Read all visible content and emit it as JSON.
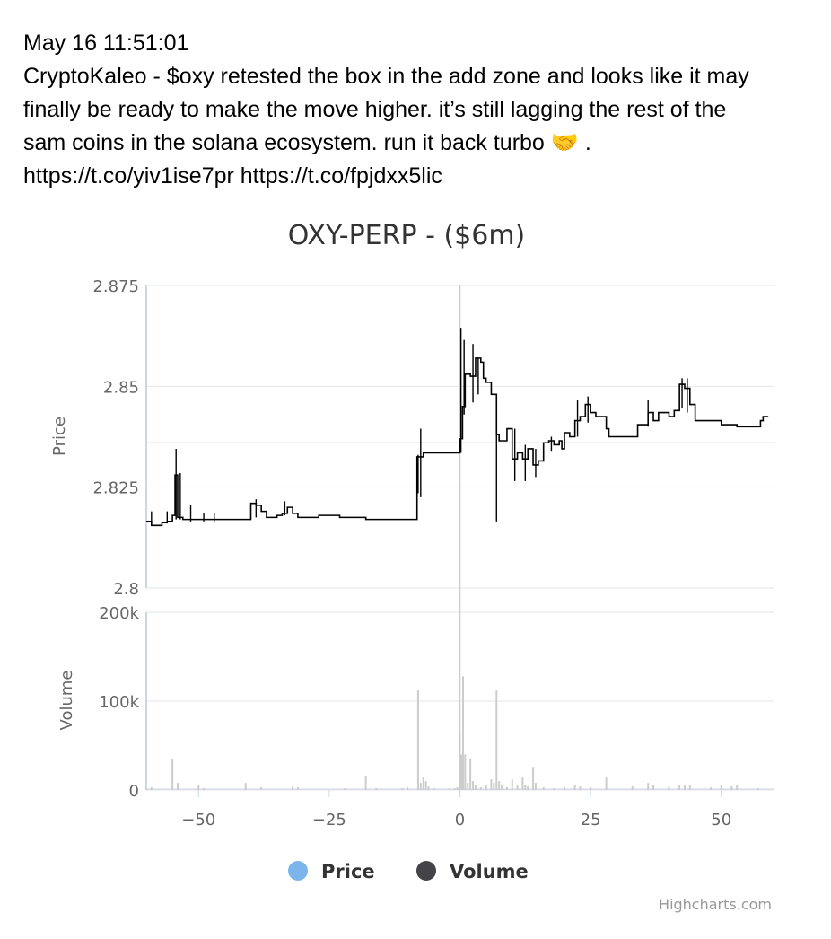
{
  "tweet": {
    "timestamp": "May 16 11:51:01",
    "line1": "CryptoKaleo - $oxy retested the box in the add zone and looks like it may",
    "line2": "finally be ready to make the move higher. it’s still lagging the rest of the",
    "line3": "sam coins in the solana ecosystem. run it back turbo 🤝 .",
    "line4": "https://t.co/yiv1ise7pr https://t.co/fpjdxx5lic"
  },
  "chart_data": {
    "type": "line",
    "title": "OXY-PERP - ($6m)",
    "credit": "Highcharts.com",
    "xlim": [
      -60,
      60
    ],
    "x_ticks": [
      -50,
      -25,
      0,
      25,
      50
    ],
    "x_tick_labels": [
      "−50",
      "−25",
      "0",
      "25",
      "50"
    ],
    "price_axis": {
      "label": "Price",
      "ylim": [
        2.8,
        2.875
      ],
      "ticks": [
        2.8,
        2.825,
        2.85,
        2.875
      ],
      "tick_labels": [
        "2.8",
        "2.825",
        "2.85",
        "2.875"
      ],
      "reference_line": 2.836
    },
    "volume_axis": {
      "label": "Volume",
      "ylim": [
        0,
        200000
      ],
      "ticks": [
        0,
        100000,
        200000
      ],
      "tick_labels": [
        "0",
        "100k",
        "200k"
      ]
    },
    "legend": [
      {
        "name": "Price",
        "color": "#7cb5ec"
      },
      {
        "name": "Volume",
        "color": "#434348"
      }
    ],
    "vertical_marker_x": 0,
    "colors": {
      "up": "#8bb8e8",
      "down": "#000000",
      "volume": "#cccccc",
      "grid": "#e6e6e6"
    },
    "price_series": [
      [
        -60,
        2.8165
      ],
      [
        -59,
        2.8155
      ],
      [
        -58,
        2.8155
      ],
      [
        -57,
        2.8162
      ],
      [
        -56,
        2.8165
      ],
      [
        -55,
        2.818
      ],
      [
        -54.5,
        2.828
      ],
      [
        -54,
        2.8175
      ],
      [
        -53,
        2.817
      ],
      [
        -50,
        2.817
      ],
      [
        -45,
        2.817
      ],
      [
        -40.5,
        2.817
      ],
      [
        -40,
        2.821
      ],
      [
        -39,
        2.8205
      ],
      [
        -38,
        2.819
      ],
      [
        -37,
        2.8175
      ],
      [
        -35,
        2.818
      ],
      [
        -34,
        2.8185
      ],
      [
        -33,
        2.82
      ],
      [
        -32,
        2.8185
      ],
      [
        -31,
        2.8175
      ],
      [
        -28,
        2.8175
      ],
      [
        -27,
        2.818
      ],
      [
        -24,
        2.818
      ],
      [
        -23,
        2.8175
      ],
      [
        -18,
        2.817
      ],
      [
        -13,
        2.817
      ],
      [
        -8.5,
        2.817
      ],
      [
        -8.2,
        2.8325
      ],
      [
        -7,
        2.8335
      ],
      [
        -3,
        2.8335
      ],
      [
        -0.3,
        2.8335
      ],
      [
        0,
        2.837
      ],
      [
        0.5,
        2.845
      ],
      [
        1,
        2.853
      ],
      [
        2,
        2.8525
      ],
      [
        3,
        2.857
      ],
      [
        4,
        2.856
      ],
      [
        4.5,
        2.852
      ],
      [
        5,
        2.851
      ],
      [
        6,
        2.848
      ],
      [
        7,
        2.838
      ],
      [
        7.5,
        2.8365
      ],
      [
        8.5,
        2.8365
      ],
      [
        9,
        2.8395
      ],
      [
        10,
        2.832
      ],
      [
        11,
        2.8335
      ],
      [
        12,
        2.832
      ],
      [
        13,
        2.8345
      ],
      [
        14,
        2.8305
      ],
      [
        15,
        2.8315
      ],
      [
        16,
        2.836
      ],
      [
        17,
        2.8365
      ],
      [
        18,
        2.8355
      ],
      [
        19,
        2.8365
      ],
      [
        19.5,
        2.8345
      ],
      [
        20,
        2.8385
      ],
      [
        21,
        2.8375
      ],
      [
        22,
        2.8415
      ],
      [
        23,
        2.8425
      ],
      [
        24,
        2.8455
      ],
      [
        25,
        2.8435
      ],
      [
        26,
        2.8425
      ],
      [
        27,
        2.8425
      ],
      [
        28,
        2.8395
      ],
      [
        28.5,
        2.8375
      ],
      [
        30,
        2.8375
      ],
      [
        33,
        2.8375
      ],
      [
        34,
        2.8405
      ],
      [
        35,
        2.8405
      ],
      [
        36,
        2.8435
      ],
      [
        37,
        2.8415
      ],
      [
        38,
        2.8435
      ],
      [
        40,
        2.8425
      ],
      [
        41,
        2.844
      ],
      [
        42,
        2.8505
      ],
      [
        43,
        2.8495
      ],
      [
        44,
        2.8455
      ],
      [
        45,
        2.8415
      ],
      [
        47,
        2.8415
      ],
      [
        50,
        2.8405
      ],
      [
        53,
        2.84
      ],
      [
        56,
        2.84
      ],
      [
        57.5,
        2.8415
      ],
      [
        58,
        2.8425
      ],
      [
        59,
        2.8425
      ]
    ],
    "price_wicks": [
      {
        "x": -59,
        "low": 2.8155,
        "high": 2.819
      },
      {
        "x": -56,
        "low": 2.816,
        "high": 2.819
      },
      {
        "x": -54.3,
        "low": 2.817,
        "high": 2.8345
      },
      {
        "x": -53.5,
        "low": 2.817,
        "high": 2.8285
      },
      {
        "x": -51.5,
        "low": 2.8165,
        "high": 2.8205
      },
      {
        "x": -49,
        "low": 2.8165,
        "high": 2.8185
      },
      {
        "x": -47,
        "low": 2.8165,
        "high": 2.8185
      },
      {
        "x": -39,
        "low": 2.8175,
        "high": 2.822
      },
      {
        "x": -33.5,
        "low": 2.818,
        "high": 2.8215
      },
      {
        "x": -7.5,
        "low": 2.8225,
        "high": 2.8395
      },
      {
        "x": -8,
        "low": 2.8235,
        "high": 2.833
      },
      {
        "x": 0.2,
        "low": 2.8335,
        "high": 2.8645
      },
      {
        "x": 0.8,
        "low": 2.843,
        "high": 2.8615
      },
      {
        "x": 2.5,
        "low": 2.846,
        "high": 2.8605
      },
      {
        "x": 3.5,
        "low": 2.848,
        "high": 2.857
      },
      {
        "x": 7,
        "low": 2.8165,
        "high": 2.8475
      },
      {
        "x": 10.5,
        "low": 2.8265,
        "high": 2.8395
      },
      {
        "x": 12.5,
        "low": 2.8265,
        "high": 2.8355
      },
      {
        "x": 14.5,
        "low": 2.8275,
        "high": 2.8345
      },
      {
        "x": 17.5,
        "low": 2.834,
        "high": 2.8375
      },
      {
        "x": 22.5,
        "low": 2.8375,
        "high": 2.8465
      },
      {
        "x": 24.5,
        "low": 2.841,
        "high": 2.8475
      },
      {
        "x": 36,
        "low": 2.84,
        "high": 2.8465
      },
      {
        "x": 42.5,
        "low": 2.8445,
        "high": 2.852
      },
      {
        "x": 43.5,
        "low": 2.8435,
        "high": 2.852
      }
    ],
    "volume_series": [
      [
        -60,
        2000
      ],
      [
        -59,
        3000
      ],
      [
        -55,
        35000
      ],
      [
        -54,
        8000
      ],
      [
        -50,
        5000
      ],
      [
        -49,
        2000
      ],
      [
        -41,
        8000
      ],
      [
        -38,
        3000
      ],
      [
        -32,
        4000
      ],
      [
        -31,
        3000
      ],
      [
        -22,
        2000
      ],
      [
        -18,
        16000
      ],
      [
        -16,
        2000
      ],
      [
        -11,
        2000
      ],
      [
        -10,
        3000
      ],
      [
        -8,
        112000
      ],
      [
        -7.5,
        8000
      ],
      [
        -7,
        14000
      ],
      [
        -6.5,
        10000
      ],
      [
        -6,
        4000
      ],
      [
        -5,
        2000
      ],
      [
        -2,
        2000
      ],
      [
        -1,
        2000
      ],
      [
        -0.5,
        3000
      ],
      [
        0,
        65000
      ],
      [
        0.3,
        40000
      ],
      [
        0.6,
        128000
      ],
      [
        1,
        40000
      ],
      [
        1.5,
        8000
      ],
      [
        2,
        35000
      ],
      [
        2.5,
        10000
      ],
      [
        3,
        6000
      ],
      [
        4,
        3000
      ],
      [
        5,
        6000
      ],
      [
        6,
        12000
      ],
      [
        6.5,
        8000
      ],
      [
        7,
        112000
      ],
      [
        7.5,
        10000
      ],
      [
        8,
        5000
      ],
      [
        9,
        3000
      ],
      [
        10,
        12000
      ],
      [
        11,
        5000
      ],
      [
        12,
        14000
      ],
      [
        12.5,
        6000
      ],
      [
        13,
        4000
      ],
      [
        14,
        26000
      ],
      [
        14.5,
        8000
      ],
      [
        16,
        3000
      ],
      [
        18,
        2000
      ],
      [
        20,
        3000
      ],
      [
        22,
        6000
      ],
      [
        23,
        4000
      ],
      [
        25,
        3000
      ],
      [
        28,
        14000
      ],
      [
        33,
        4000
      ],
      [
        36,
        8000
      ],
      [
        37,
        6000
      ],
      [
        40,
        4000
      ],
      [
        42,
        6000
      ],
      [
        43,
        5000
      ],
      [
        44,
        5000
      ],
      [
        48,
        3000
      ],
      [
        50,
        5000
      ],
      [
        52,
        4000
      ],
      [
        53,
        6000
      ],
      [
        57,
        2000
      ]
    ]
  }
}
